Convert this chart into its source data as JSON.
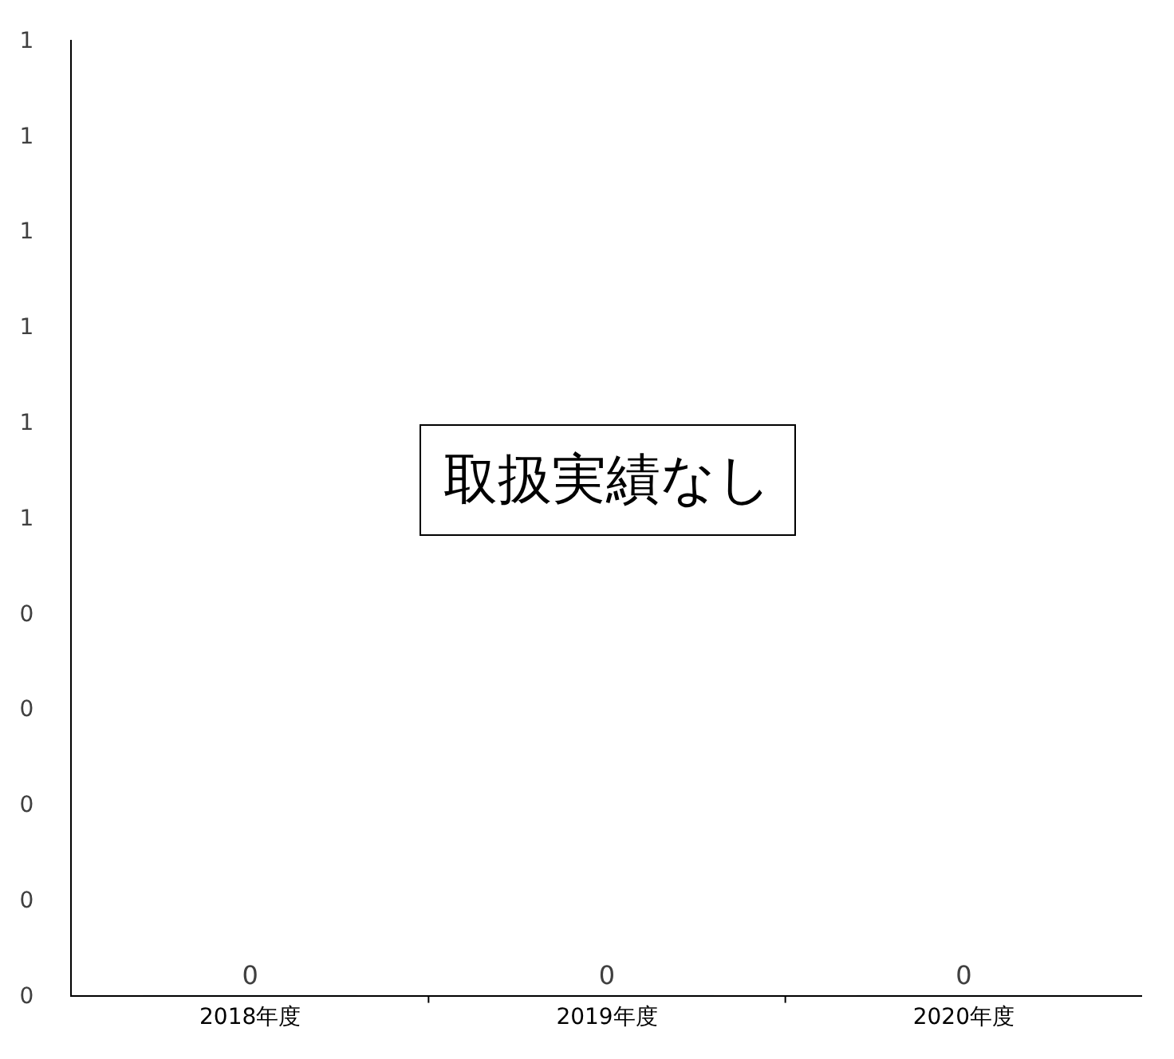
{
  "chart_data": {
    "type": "bar",
    "categories": [
      "2018年度",
      "2019年度",
      "2020年度"
    ],
    "values": [
      0,
      0,
      0
    ],
    "data_labels": true,
    "ylim": [
      0,
      1
    ],
    "yticks": [
      {
        "value": 0,
        "label": "0"
      },
      {
        "value": 0.1,
        "label": "0"
      },
      {
        "value": 0.2,
        "label": "0"
      },
      {
        "value": 0.3,
        "label": "0"
      },
      {
        "value": 0.4,
        "label": "0"
      },
      {
        "value": 0.5,
        "label": "1"
      },
      {
        "value": 0.6,
        "label": "1"
      },
      {
        "value": 0.7,
        "label": "1"
      },
      {
        "value": 0.8,
        "label": "1"
      },
      {
        "value": 0.9,
        "label": "1"
      },
      {
        "value": 1,
        "label": "1"
      }
    ],
    "annotations": [
      "取扱実績なし"
    ]
  }
}
